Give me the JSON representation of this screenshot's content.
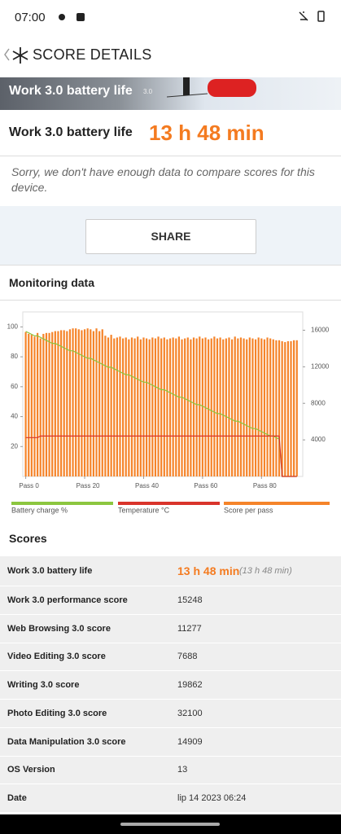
{
  "status_bar": {
    "time": "07:00"
  },
  "header": {
    "title": "SCORE DETAILS"
  },
  "banner": {
    "title": "Work 3.0 battery life",
    "version": "3.0"
  },
  "result": {
    "name": "Work 3.0 battery life",
    "value": "13 h 48 min",
    "note": "Sorry, we don't have enough data to compare scores for this device."
  },
  "share": "SHARE",
  "monitoring": {
    "title": "Monitoring data"
  },
  "chart_data": {
    "type": "bar",
    "x": [
      0,
      1,
      2,
      3,
      4,
      5,
      6,
      7,
      8,
      9,
      10,
      11,
      12,
      13,
      14,
      15,
      16,
      17,
      18,
      19,
      20,
      21,
      22,
      23,
      24,
      25,
      26,
      27,
      28,
      29,
      30,
      31,
      32,
      33,
      34,
      35,
      36,
      37,
      38,
      39,
      40,
      41,
      42,
      43,
      44,
      45,
      46,
      47,
      48,
      49,
      50,
      51,
      52,
      53,
      54,
      55,
      56,
      57,
      58,
      59,
      60,
      61,
      62,
      63,
      64,
      65,
      66,
      67,
      68,
      69,
      70,
      71,
      72,
      73,
      74,
      75,
      76,
      77,
      78,
      79,
      80,
      81,
      82,
      83,
      84,
      85,
      86,
      87,
      88,
      89,
      90,
      91,
      92
    ],
    "xlim": [
      -1,
      94
    ],
    "xticks": [
      {
        "value": 0,
        "label": "Pass 0"
      },
      {
        "value": 20,
        "label": "Pass 20"
      },
      {
        "value": 40,
        "label": "Pass 40"
      },
      {
        "value": 60,
        "label": "Pass 60"
      },
      {
        "value": 80,
        "label": "Pass 80"
      }
    ],
    "ylim": [
      0,
      110
    ],
    "yticks": [
      20,
      40,
      60,
      80,
      100
    ],
    "y2lim": [
      0,
      18000
    ],
    "y2ticks": [
      4000,
      8000,
      12000,
      16000
    ],
    "series": [
      {
        "name": "Battery charge %",
        "type": "line",
        "color": "#8cc63f",
        "values": [
          97,
          96,
          95,
          94,
          94,
          93,
          92,
          91,
          90,
          89,
          89,
          88,
          87,
          86,
          85,
          84,
          84,
          83,
          82,
          81,
          80,
          79,
          79,
          78,
          77,
          76,
          75,
          74,
          73,
          73,
          72,
          71,
          70,
          69,
          68,
          68,
          67,
          66,
          65,
          64,
          63,
          63,
          62,
          61,
          60,
          59,
          58,
          58,
          57,
          56,
          55,
          54,
          53,
          53,
          52,
          51,
          50,
          49,
          48,
          48,
          47,
          46,
          45,
          44,
          43,
          42,
          42,
          41,
          40,
          39,
          38,
          37,
          37,
          36,
          35,
          34,
          33,
          32,
          32,
          31,
          30,
          29,
          28,
          27,
          27,
          26,
          25,
          0,
          0,
          0,
          0,
          0,
          0
        ]
      },
      {
        "name": "Temperature °C",
        "type": "line",
        "color": "#d9342b",
        "values": [
          26,
          26,
          26,
          26,
          26,
          27,
          27,
          27,
          27,
          27,
          27,
          27,
          27,
          27,
          27,
          27,
          27,
          27,
          27,
          27,
          27,
          27,
          27,
          27,
          27,
          27,
          27,
          27,
          27,
          27,
          27,
          27,
          27,
          27,
          27,
          27,
          27,
          27,
          27,
          27,
          27,
          27,
          27,
          27,
          27,
          27,
          27,
          27,
          27,
          27,
          27,
          27,
          27,
          27,
          27,
          27,
          27,
          27,
          27,
          27,
          27,
          27,
          27,
          27,
          27,
          27,
          27,
          27,
          27,
          27,
          27,
          27,
          27,
          27,
          27,
          27,
          27,
          27,
          27,
          27,
          27,
          27,
          27,
          27,
          27,
          27,
          27,
          0,
          0,
          0,
          0,
          0,
          0
        ]
      },
      {
        "name": "Score per pass",
        "type": "bar",
        "axis": "y2",
        "color": "#f5842a",
        "values": [
          15800,
          15600,
          15500,
          15300,
          15700,
          15100,
          15600,
          15700,
          15700,
          15800,
          15900,
          15900,
          16000,
          16000,
          15900,
          16100,
          16200,
          16200,
          16100,
          16000,
          16100,
          16200,
          16100,
          15900,
          16200,
          15900,
          16100,
          15400,
          15200,
          15500,
          15100,
          15200,
          15300,
          15100,
          15200,
          15000,
          15200,
          15100,
          15300,
          15000,
          15200,
          15100,
          15000,
          15200,
          15100,
          15300,
          15100,
          15200,
          15000,
          15100,
          15200,
          15100,
          15300,
          15000,
          15100,
          15200,
          15000,
          15200,
          15100,
          15300,
          15100,
          15200,
          15000,
          15100,
          15300,
          15100,
          15200,
          15000,
          15100,
          15200,
          15000,
          15300,
          15100,
          15200,
          15100,
          15000,
          15200,
          15100,
          15000,
          15200,
          15100,
          15000,
          15200,
          15100,
          15000,
          14900,
          14900,
          14800,
          14700,
          14800,
          14800,
          14900,
          14900
        ]
      }
    ]
  },
  "scores": {
    "title": "Scores",
    "rows": [
      [
        "Work 3.0 battery life",
        "13 h 48 min",
        "(13 h 48 min)"
      ],
      [
        "Work 3.0 performance score",
        "15248"
      ],
      [
        "Web Browsing 3.0 score",
        "11277"
      ],
      [
        "Video Editing 3.0 score",
        "7688"
      ],
      [
        "Writing 3.0 score",
        "19862"
      ],
      [
        "Photo Editing 3.0 score",
        "32100"
      ],
      [
        "Data Manipulation 3.0 score",
        "14909"
      ],
      [
        "OS Version",
        "13"
      ],
      [
        "Date",
        "lip 14 2023 06:24"
      ]
    ]
  }
}
